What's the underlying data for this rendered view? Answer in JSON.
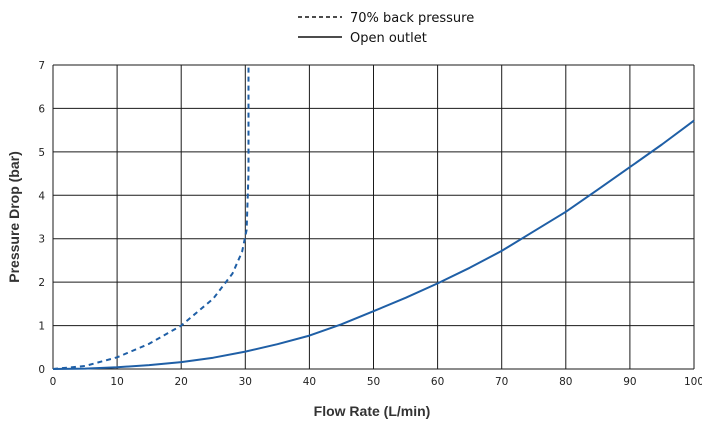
{
  "chart_data": {
    "type": "line",
    "xlabel": "Flow Rate (L/min)",
    "ylabel": "Pressure Drop (bar)",
    "xlim": [
      0,
      100
    ],
    "ylim": [
      0,
      7
    ],
    "x_ticks": [
      "0",
      "10",
      "20",
      "30",
      "40",
      "50",
      "60",
      "70",
      "80",
      "90",
      "100"
    ],
    "y_ticks": [
      "0",
      "1",
      "2",
      "3",
      "4",
      "5",
      "6",
      "7"
    ],
    "grid": true,
    "legend_position": "top-center",
    "series": [
      {
        "name": "70% back pressure",
        "style": "dashed",
        "color": "#1f5fa6",
        "x": [
          0,
          5,
          10,
          15,
          20,
          25,
          28,
          29.5,
          30.2,
          30.5,
          30.5
        ],
        "y": [
          0,
          0.07,
          0.27,
          0.58,
          1.0,
          1.62,
          2.2,
          2.7,
          3.2,
          4.5,
          7.0
        ]
      },
      {
        "name": "Open outlet",
        "style": "solid",
        "color": "#1f5fa6",
        "x": [
          0,
          5,
          10,
          15,
          20,
          25,
          30,
          35,
          40,
          45,
          50,
          55,
          60,
          65,
          70,
          75,
          80,
          85,
          90,
          95,
          100
        ],
        "y": [
          0,
          0.01,
          0.04,
          0.09,
          0.16,
          0.26,
          0.4,
          0.57,
          0.77,
          1.03,
          1.33,
          1.64,
          1.97,
          2.33,
          2.72,
          3.17,
          3.62,
          4.13,
          4.65,
          5.17,
          5.72
        ]
      }
    ]
  }
}
